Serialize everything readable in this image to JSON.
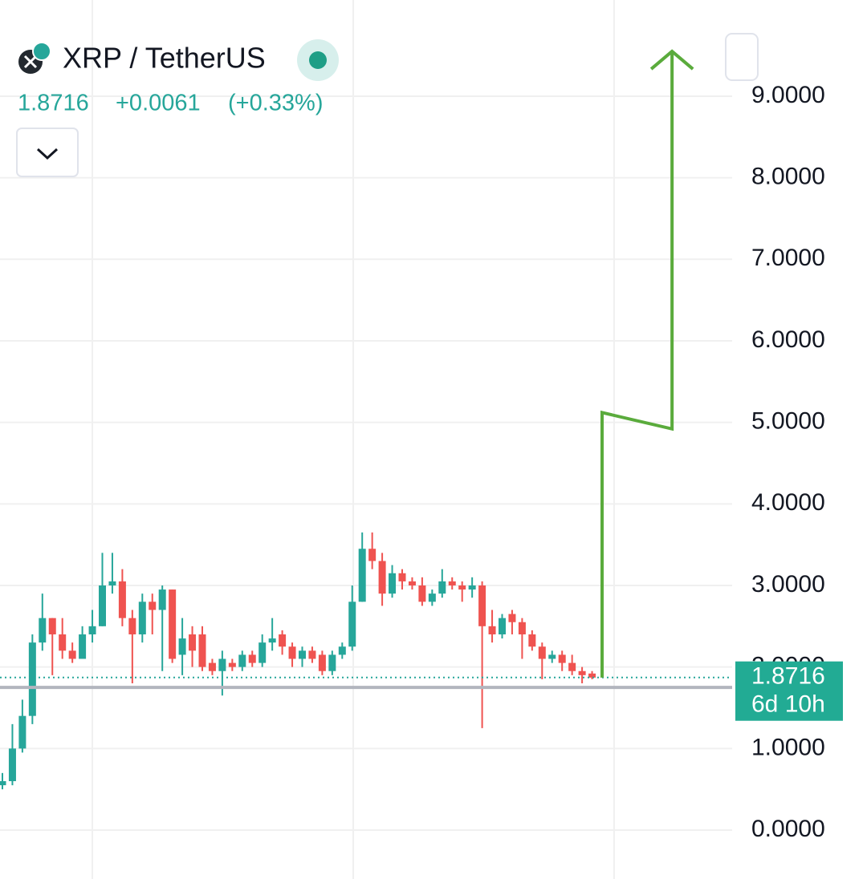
{
  "chart_data": {
    "type": "candlestick",
    "title": "XRP / TetherUS",
    "last": 1.8716,
    "change": "+0.0061",
    "change_pct": "(+0.33%)",
    "countdown": "6d 10h",
    "up_color": "#26a69a",
    "down_color": "#ef5350",
    "open": [
      0.55,
      0.6,
      1.0,
      1.4,
      2.3,
      2.6,
      2.4,
      2.2,
      2.1,
      2.4,
      2.5,
      3.0,
      3.05,
      2.6,
      2.4,
      2.8,
      2.7,
      2.95,
      2.15,
      2.4,
      2.4,
      2.05,
      1.95,
      2.05,
      2.0,
      2.15,
      2.05,
      2.3,
      2.4,
      2.25,
      2.1,
      2.2,
      2.15,
      1.95,
      2.15,
      2.25,
      2.8,
      3.45,
      3.3,
      2.9,
      3.15,
      3.05,
      3.0,
      2.8,
      2.9,
      3.05,
      3.0,
      2.95,
      3.0,
      2.5,
      2.4,
      2.65,
      2.55,
      2.4,
      2.25,
      2.1,
      2.15,
      2.05,
      1.95,
      1.92
    ],
    "high": [
      0.7,
      1.3,
      1.6,
      2.4,
      2.9,
      2.6,
      2.6,
      2.3,
      2.5,
      2.7,
      3.4,
      3.4,
      3.2,
      2.7,
      2.9,
      2.9,
      3.0,
      2.95,
      2.6,
      2.5,
      2.5,
      2.1,
      2.2,
      2.1,
      2.2,
      2.2,
      2.4,
      2.6,
      2.45,
      2.3,
      2.25,
      2.25,
      2.2,
      2.2,
      2.3,
      3.0,
      3.65,
      3.65,
      3.4,
      3.25,
      3.2,
      3.1,
      3.1,
      2.95,
      3.2,
      3.1,
      3.05,
      3.1,
      3.05,
      2.7,
      2.65,
      2.7,
      2.6,
      2.45,
      2.3,
      2.2,
      2.2,
      2.15,
      2.0,
      1.95
    ],
    "low": [
      0.5,
      0.55,
      0.95,
      1.3,
      2.2,
      1.9,
      2.1,
      2.05,
      2.1,
      2.3,
      2.5,
      2.9,
      2.5,
      1.8,
      2.3,
      2.4,
      1.95,
      2.05,
      1.9,
      2.0,
      1.95,
      1.9,
      1.65,
      1.95,
      1.95,
      2.0,
      2.0,
      2.2,
      2.15,
      2.0,
      2.0,
      2.05,
      1.9,
      1.9,
      2.1,
      2.2,
      2.8,
      3.2,
      2.75,
      2.85,
      2.95,
      2.95,
      2.75,
      2.75,
      2.85,
      2.95,
      2.8,
      2.85,
      1.25,
      2.3,
      2.35,
      2.4,
      2.1,
      2.2,
      1.85,
      2.05,
      1.95,
      1.9,
      1.8,
      1.85
    ],
    "close": [
      0.6,
      1.0,
      1.4,
      2.3,
      2.6,
      2.4,
      2.2,
      2.1,
      2.4,
      2.5,
      3.0,
      3.05,
      2.6,
      2.4,
      2.8,
      2.7,
      2.95,
      2.1,
      2.35,
      2.2,
      2.0,
      1.95,
      2.1,
      2.0,
      2.15,
      2.05,
      2.3,
      2.35,
      2.25,
      2.1,
      2.2,
      2.1,
      1.95,
      2.15,
      2.25,
      2.8,
      3.45,
      3.3,
      2.9,
      3.15,
      3.05,
      3.0,
      2.8,
      2.9,
      3.05,
      3.0,
      2.95,
      3.0,
      2.5,
      2.4,
      2.6,
      2.55,
      2.4,
      2.25,
      2.1,
      2.15,
      2.05,
      1.95,
      1.9,
      1.87
    ],
    "hline": 1.75,
    "arrow": {
      "color": "#5aab3c",
      "x": [
        60,
        60,
        67,
        67
      ],
      "values": [
        1.87,
        5.12,
        4.92,
        9.55
      ]
    },
    "ylim": [
      -0.6,
      10.18
    ],
    "yticks": [
      {
        "value": 0,
        "label": "0.0000"
      },
      {
        "value": 1,
        "label": "1.0000"
      },
      {
        "value": 2,
        "label": "2.0000"
      },
      {
        "value": 3,
        "label": "3.0000"
      },
      {
        "value": 4,
        "label": "4.0000"
      },
      {
        "value": 5,
        "label": "5.0000"
      },
      {
        "value": 6,
        "label": "6.0000"
      },
      {
        "value": 7,
        "label": "7.0000"
      },
      {
        "value": 8,
        "label": "8.0000"
      },
      {
        "value": 9,
        "label": "9.0000"
      }
    ],
    "grid": true
  }
}
